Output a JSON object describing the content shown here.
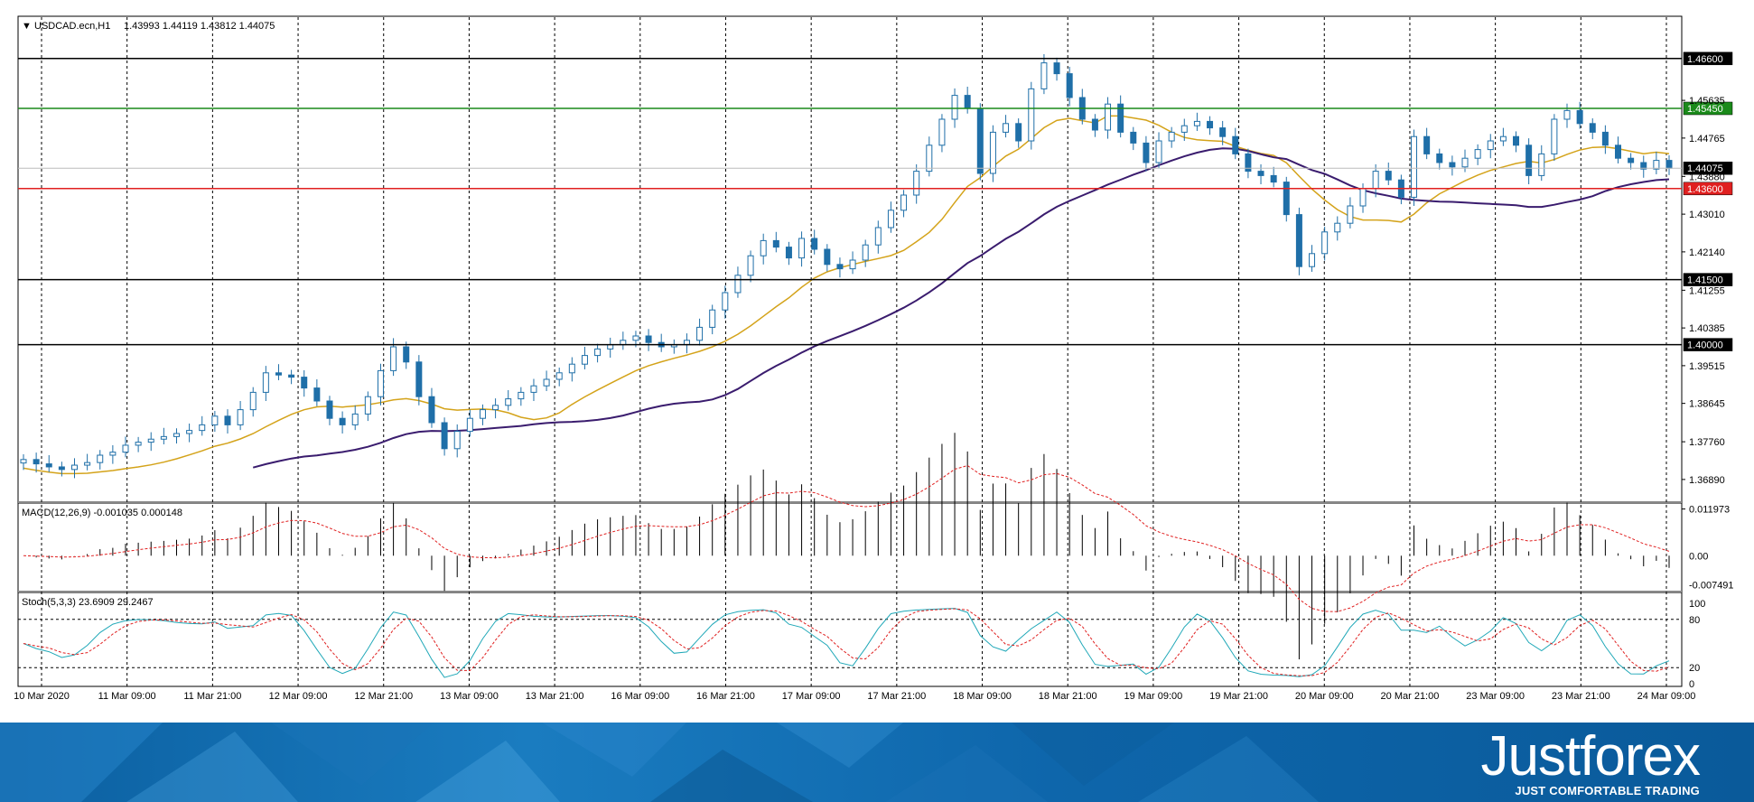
{
  "header": {
    "symbol": "USDCAD.ecn,H1",
    "ohlc": "1.43993 1.44119 1.43812 1.44075"
  },
  "chart_data": {
    "type": "candlestick",
    "price_axis": {
      "min": 1.3645,
      "max": 1.4695,
      "tick_labels": [
        "1.45635",
        "1.44765",
        "1.43880",
        "1.43010",
        "1.42140",
        "1.41255",
        "1.40385",
        "1.39515",
        "1.38645",
        "1.37760",
        "1.36890"
      ]
    },
    "levels": [
      {
        "value": 1.466,
        "label": "1.46600",
        "color": "#000000"
      },
      {
        "value": 1.4545,
        "label": "1.45450",
        "color": "#1a8a1a"
      },
      {
        "value": 1.4407,
        "label": "1.44075",
        "color": "#000000",
        "current": true
      },
      {
        "value": 1.436,
        "label": "1.43600",
        "color": "#e02020"
      },
      {
        "value": 1.415,
        "label": "1.41500",
        "color": "#000000"
      },
      {
        "value": 1.4,
        "label": "1.40000",
        "color": "#000000"
      }
    ],
    "time_labels": [
      "10 Mar 2020",
      "11 Mar 09:00",
      "11 Mar 21:00",
      "12 Mar 09:00",
      "12 Mar 21:00",
      "13 Mar 09:00",
      "13 Mar 21:00",
      "16 Mar 09:00",
      "16 Mar 21:00",
      "17 Mar 09:00",
      "17 Mar 21:00",
      "18 Mar 09:00",
      "18 Mar 21:00",
      "19 Mar 09:00",
      "19 Mar 21:00",
      "20 Mar 09:00",
      "20 Mar 21:00",
      "23 Mar 09:00",
      "23 Mar 21:00",
      "24 Mar 09:00"
    ],
    "price_series": [
      1.3735,
      1.3725,
      1.3718,
      1.3712,
      1.3722,
      1.3728,
      1.3745,
      1.3752,
      1.3768,
      1.3775,
      1.3782,
      1.3788,
      1.3795,
      1.3802,
      1.3815,
      1.3835,
      1.3815,
      1.385,
      1.389,
      1.3935,
      1.393,
      1.3925,
      1.39,
      1.387,
      1.383,
      1.3815,
      1.384,
      1.388,
      1.394,
      1.3995,
      1.396,
      1.388,
      1.382,
      1.376,
      1.38,
      1.383,
      1.385,
      1.386,
      1.3875,
      1.389,
      1.3905,
      1.392,
      1.3935,
      1.3955,
      1.3975,
      1.399,
      1.4,
      1.401,
      1.402,
      1.4005,
      1.3995,
      1.4,
      1.401,
      1.404,
      1.408,
      1.412,
      1.416,
      1.4205,
      1.424,
      1.4225,
      1.42,
      1.4245,
      1.422,
      1.4185,
      1.4175,
      1.4195,
      1.423,
      1.427,
      1.431,
      1.4345,
      1.44,
      1.446,
      1.452,
      1.4575,
      1.4545,
      1.4395,
      1.449,
      1.451,
      1.447,
      1.459,
      1.465,
      1.4625,
      1.457,
      1.452,
      1.4495,
      1.4555,
      1.449,
      1.4465,
      1.442,
      1.447,
      1.449,
      1.4505,
      1.4515,
      1.45,
      1.448,
      1.444,
      1.44,
      1.439,
      1.4375,
      1.43,
      1.418,
      1.421,
      1.426,
      1.428,
      1.432,
      1.436,
      1.44,
      1.438,
      1.434,
      1.448,
      1.444,
      1.442,
      1.441,
      1.443,
      1.445,
      1.447,
      1.448,
      1.446,
      1.439,
      1.444,
      1.452,
      1.454,
      1.451,
      1.449,
      1.446,
      1.443,
      1.442,
      1.4405,
      1.4425,
      1.4407
    ],
    "ma_slow_color": "#d4a31a",
    "ma_fast_color": "#3a1c6e",
    "macd": {
      "label": "MACD(12,26,9) -0.001035 0.000148",
      "ticks": [
        "0.011973",
        "0.00",
        "-0.007491"
      ],
      "min": -0.0085,
      "max": 0.0128
    },
    "stoch": {
      "label": "Stoch(5,3,3) 23.6909 29.2467",
      "ticks": [
        "100",
        "80",
        "20",
        "0"
      ]
    },
    "grid": true
  },
  "brand": {
    "name": "Justforex",
    "tagline": "JUST COMFORTABLE TRADING"
  }
}
